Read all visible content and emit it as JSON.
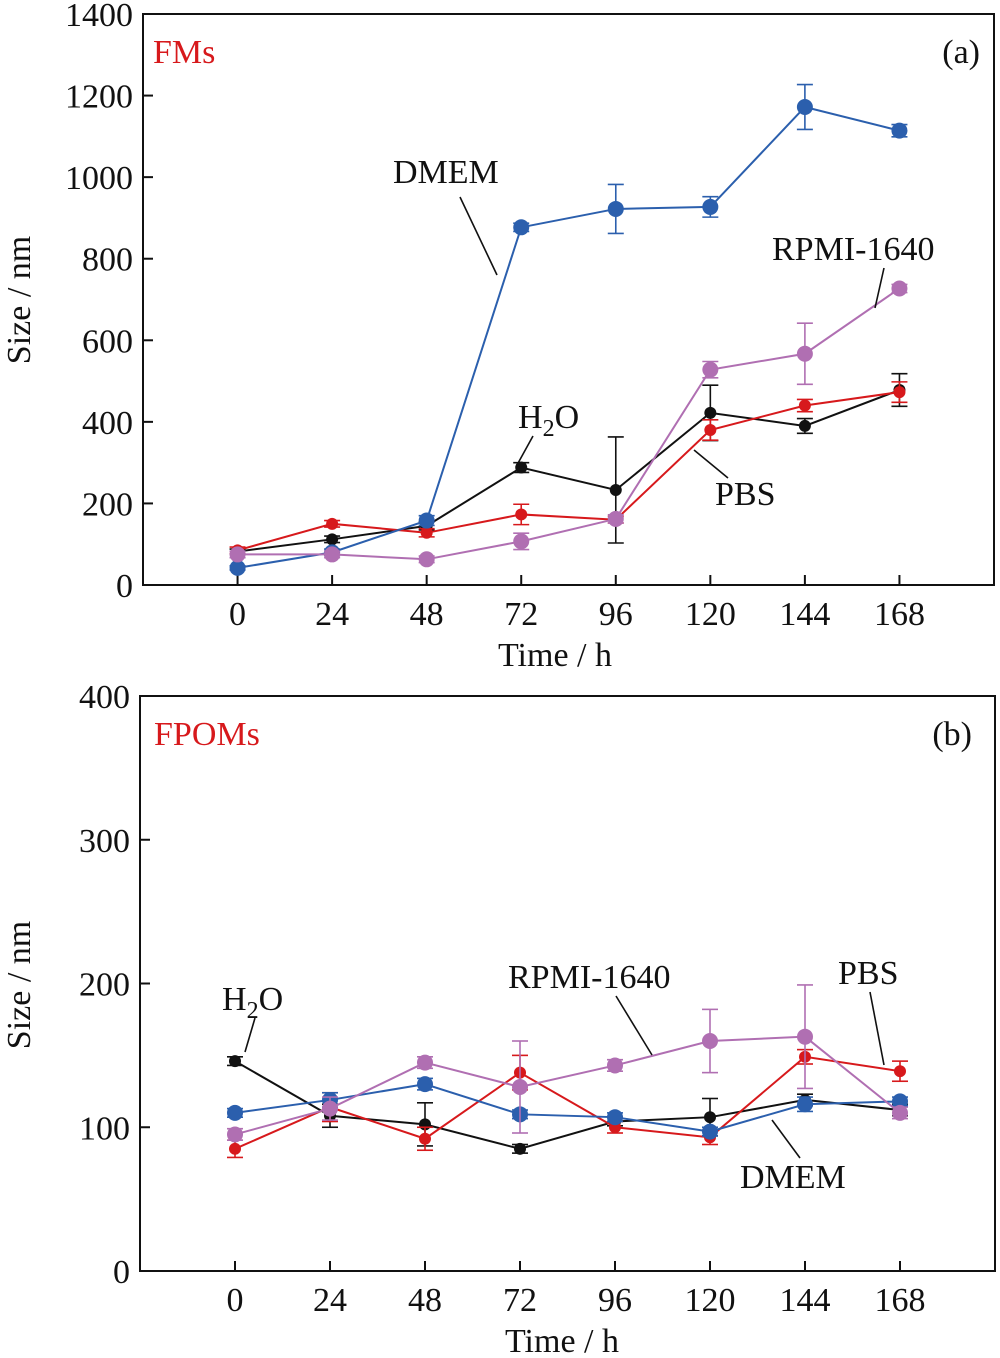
{
  "chart_data": [
    {
      "type": "line",
      "panel_label": "(a)",
      "title": "FMs",
      "title_color": "#d7191c",
      "xlabel": "Time / h",
      "ylabel": "Size / nm",
      "x": [
        0,
        24,
        48,
        72,
        96,
        120,
        144,
        168
      ],
      "x_ticks": [
        "0",
        "24",
        "48",
        "72",
        "96",
        "120",
        "144",
        "168"
      ],
      "xlim": [
        -24,
        192
      ],
      "ylim": [
        0,
        1400
      ],
      "y_ticks": [
        "0",
        "200",
        "400",
        "600",
        "800",
        "1000",
        "1200",
        "1400"
      ],
      "series": [
        {
          "name": "H2O",
          "color": "#111111",
          "marker_size": "small",
          "values": [
            82,
            112,
            145,
            288,
            233,
            422,
            390,
            478
          ],
          "errors": [
            6,
            8,
            10,
            12,
            130,
            68,
            18,
            40
          ]
        },
        {
          "name": "PBS",
          "color": "#d7191c",
          "marker_size": "small",
          "values": [
            85,
            150,
            128,
            173,
            160,
            380,
            440,
            473
          ],
          "errors": [
            8,
            8,
            10,
            25,
            8,
            25,
            15,
            25
          ]
        },
        {
          "name": "DMEM",
          "color": "#2b5fad",
          "marker_size": "large",
          "values": [
            42,
            80,
            158,
            877,
            922,
            927,
            1172,
            1114
          ],
          "errors": [
            5,
            8,
            12,
            10,
            60,
            25,
            55,
            15
          ]
        },
        {
          "name": "RPMI-1640",
          "color": "#b06fb2",
          "marker_size": "large",
          "values": [
            75,
            75,
            63,
            107,
            162,
            528,
            567,
            727
          ],
          "errors": [
            8,
            8,
            8,
            20,
            10,
            20,
            75,
            10
          ]
        }
      ],
      "annotations": [
        {
          "text": "DMEM",
          "series": "DMEM"
        },
        {
          "text": "RPMI-1640",
          "series": "RPMI-1640"
        },
        {
          "text": "H",
          "sub": "2",
          "tail": "O",
          "series": "H2O"
        },
        {
          "text": "PBS",
          "series": "PBS"
        }
      ]
    },
    {
      "type": "line",
      "panel_label": "(b)",
      "title": "FPOMs",
      "title_color": "#d7191c",
      "xlabel": "Time / h",
      "ylabel": "Size / nm",
      "x": [
        0,
        24,
        48,
        72,
        96,
        120,
        144,
        168
      ],
      "x_ticks": [
        "0",
        "24",
        "48",
        "72",
        "96",
        "120",
        "144",
        "168"
      ],
      "xlim": [
        -24,
        192
      ],
      "ylim": [
        0,
        400
      ],
      "y_ticks": [
        "0",
        "100",
        "200",
        "300",
        "400"
      ],
      "series": [
        {
          "name": "H2O",
          "color": "#111111",
          "marker_size": "small",
          "values": [
            146,
            108,
            102,
            85,
            104,
            107,
            119,
            112
          ],
          "errors": [
            3,
            8,
            15,
            3,
            3,
            13,
            4,
            4
          ]
        },
        {
          "name": "PBS",
          "color": "#d7191c",
          "marker_size": "small",
          "values": [
            85,
            114,
            92,
            138,
            100,
            93,
            149,
            139
          ],
          "errors": [
            6,
            10,
            8,
            12,
            4,
            5,
            5,
            7
          ]
        },
        {
          "name": "DMEM",
          "color": "#2b5fad",
          "marker_size": "large",
          "values": [
            110,
            119,
            130,
            109,
            107,
            97,
            116,
            118
          ],
          "errors": [
            3,
            5,
            4,
            3,
            3,
            3,
            5,
            3
          ]
        },
        {
          "name": "RPMI-1640",
          "color": "#b06fb2",
          "marker_size": "large",
          "values": [
            95,
            113,
            145,
            128,
            143,
            160,
            163,
            110
          ],
          "errors": [
            4,
            8,
            4,
            32,
            4,
            22,
            36,
            4
          ]
        }
      ],
      "annotations": [
        {
          "text": "H",
          "sub": "2",
          "tail": "O",
          "series": "H2O"
        },
        {
          "text": "RPMI-1640",
          "series": "RPMI-1640"
        },
        {
          "text": "PBS",
          "series": "PBS"
        },
        {
          "text": "DMEM",
          "series": "DMEM"
        }
      ]
    }
  ]
}
